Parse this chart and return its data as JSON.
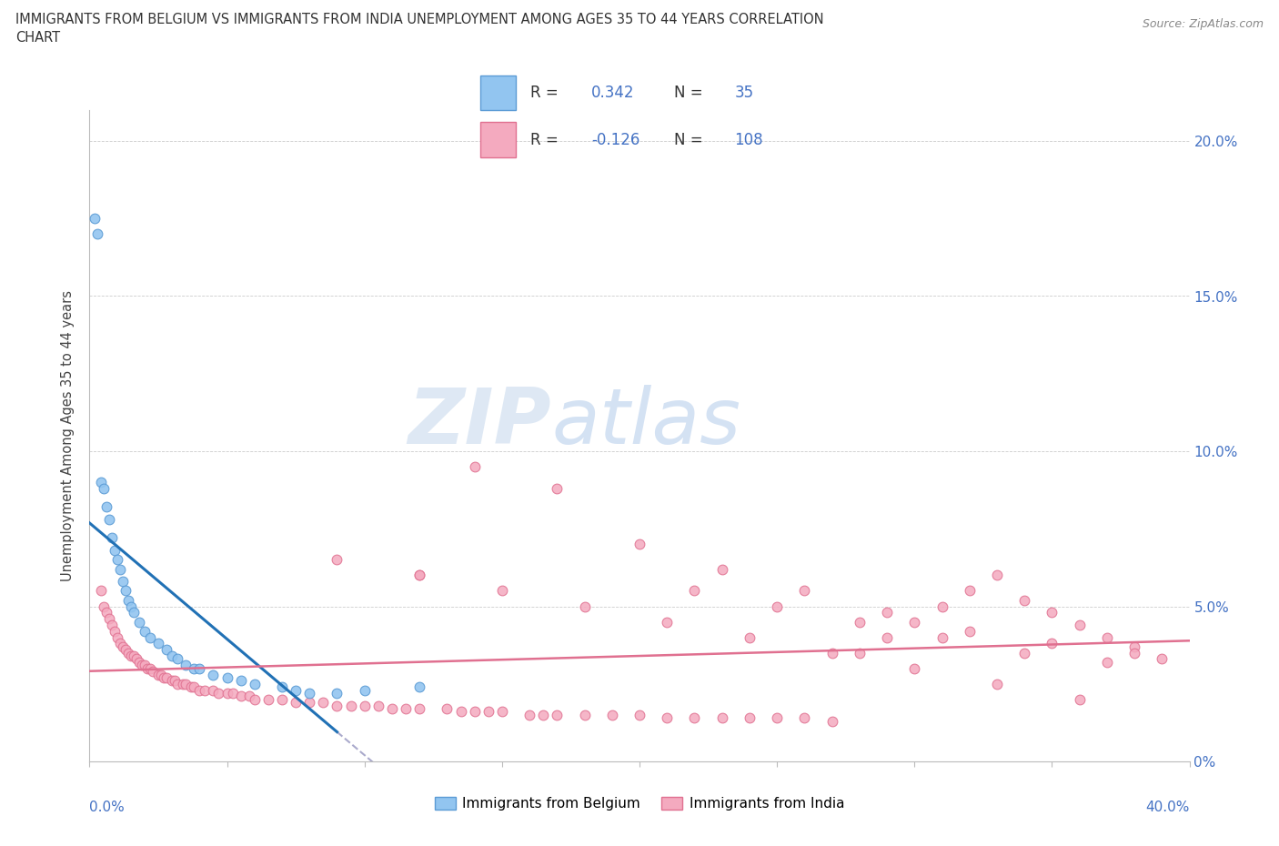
{
  "title_line1": "IMMIGRANTS FROM BELGIUM VS IMMIGRANTS FROM INDIA UNEMPLOYMENT AMONG AGES 35 TO 44 YEARS CORRELATION",
  "title_line2": "CHART",
  "source": "Source: ZipAtlas.com",
  "ylabel": "Unemployment Among Ages 35 to 44 years",
  "right_ytick_vals": [
    0.0,
    0.05,
    0.1,
    0.15,
    0.2
  ],
  "right_ytick_labels": [
    "0%",
    "5.0%",
    "10.0%",
    "15.0%",
    "20.0%"
  ],
  "xlim": [
    0.0,
    0.4
  ],
  "ylim": [
    0.0,
    0.21
  ],
  "belgium_color": "#92C5F0",
  "belgium_edge_color": "#5B9BD5",
  "belgium_line_color": "#2171B5",
  "india_color": "#F4AABF",
  "india_edge_color": "#E07090",
  "india_line_color": "#E07090",
  "dash_color": "#AAAACC",
  "blue_text_color": "#4472C4",
  "watermark_color": "#D8E8F5",
  "belgium_N": 35,
  "india_N": 108,
  "belgium_R": "0.342",
  "india_R": "-0.126",
  "bel_x": [
    0.002,
    0.003,
    0.004,
    0.005,
    0.006,
    0.007,
    0.008,
    0.009,
    0.01,
    0.011,
    0.012,
    0.013,
    0.014,
    0.015,
    0.016,
    0.018,
    0.02,
    0.022,
    0.025,
    0.028,
    0.03,
    0.032,
    0.035,
    0.038,
    0.04,
    0.045,
    0.05,
    0.055,
    0.06,
    0.07,
    0.075,
    0.08,
    0.09,
    0.1,
    0.12
  ],
  "bel_y": [
    0.175,
    0.17,
    0.09,
    0.088,
    0.082,
    0.078,
    0.072,
    0.068,
    0.065,
    0.062,
    0.058,
    0.055,
    0.052,
    0.05,
    0.048,
    0.045,
    0.042,
    0.04,
    0.038,
    0.036,
    0.034,
    0.033,
    0.031,
    0.03,
    0.03,
    0.028,
    0.027,
    0.026,
    0.025,
    0.024,
    0.023,
    0.022,
    0.022,
    0.023,
    0.024
  ],
  "ind_x": [
    0.004,
    0.005,
    0.006,
    0.007,
    0.008,
    0.009,
    0.01,
    0.011,
    0.012,
    0.013,
    0.014,
    0.015,
    0.016,
    0.017,
    0.018,
    0.019,
    0.02,
    0.021,
    0.022,
    0.023,
    0.025,
    0.026,
    0.027,
    0.028,
    0.03,
    0.031,
    0.032,
    0.034,
    0.035,
    0.037,
    0.038,
    0.04,
    0.042,
    0.045,
    0.047,
    0.05,
    0.052,
    0.055,
    0.058,
    0.06,
    0.065,
    0.07,
    0.075,
    0.08,
    0.085,
    0.09,
    0.095,
    0.1,
    0.105,
    0.11,
    0.115,
    0.12,
    0.13,
    0.135,
    0.14,
    0.145,
    0.15,
    0.16,
    0.165,
    0.17,
    0.18,
    0.19,
    0.2,
    0.21,
    0.22,
    0.23,
    0.24,
    0.25,
    0.26,
    0.27,
    0.28,
    0.29,
    0.3,
    0.31,
    0.32,
    0.33,
    0.34,
    0.35,
    0.36,
    0.37,
    0.38,
    0.39,
    0.22,
    0.25,
    0.28,
    0.31,
    0.34,
    0.37,
    0.12,
    0.15,
    0.18,
    0.21,
    0.24,
    0.27,
    0.3,
    0.33,
    0.36,
    0.14,
    0.17,
    0.2,
    0.23,
    0.26,
    0.29,
    0.32,
    0.35,
    0.38,
    0.09,
    0.12
  ],
  "ind_y": [
    0.055,
    0.05,
    0.048,
    0.046,
    0.044,
    0.042,
    0.04,
    0.038,
    0.037,
    0.036,
    0.035,
    0.034,
    0.034,
    0.033,
    0.032,
    0.031,
    0.031,
    0.03,
    0.03,
    0.029,
    0.028,
    0.028,
    0.027,
    0.027,
    0.026,
    0.026,
    0.025,
    0.025,
    0.025,
    0.024,
    0.024,
    0.023,
    0.023,
    0.023,
    0.022,
    0.022,
    0.022,
    0.021,
    0.021,
    0.02,
    0.02,
    0.02,
    0.019,
    0.019,
    0.019,
    0.018,
    0.018,
    0.018,
    0.018,
    0.017,
    0.017,
    0.017,
    0.017,
    0.016,
    0.016,
    0.016,
    0.016,
    0.015,
    0.015,
    0.015,
    0.015,
    0.015,
    0.015,
    0.014,
    0.014,
    0.014,
    0.014,
    0.014,
    0.014,
    0.013,
    0.035,
    0.04,
    0.045,
    0.05,
    0.055,
    0.06,
    0.052,
    0.048,
    0.044,
    0.04,
    0.037,
    0.033,
    0.055,
    0.05,
    0.045,
    0.04,
    0.035,
    0.032,
    0.06,
    0.055,
    0.05,
    0.045,
    0.04,
    0.035,
    0.03,
    0.025,
    0.02,
    0.095,
    0.088,
    0.07,
    0.062,
    0.055,
    0.048,
    0.042,
    0.038,
    0.035,
    0.065,
    0.06
  ]
}
